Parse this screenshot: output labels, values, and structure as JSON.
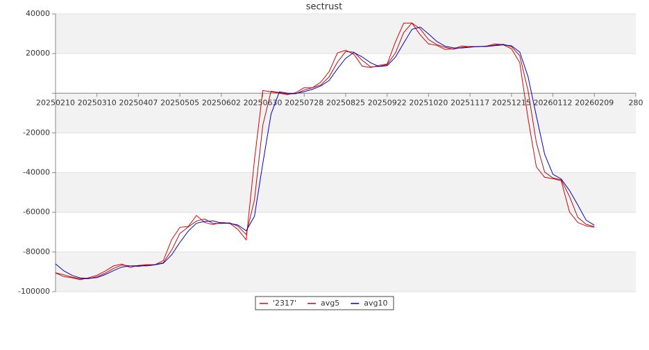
{
  "chart_data": {
    "type": "line",
    "title": "sectrust",
    "x": [
      0,
      4,
      8,
      12,
      16,
      20,
      24,
      28,
      32,
      36,
      40,
      44,
      48,
      52,
      56,
      60,
      64,
      68,
      72,
      76,
      80,
      84,
      88,
      92,
      96,
      100,
      104,
      108,
      112,
      116,
      120,
      124,
      128,
      132,
      136,
      140,
      144,
      148,
      152,
      156,
      160,
      164,
      168,
      172,
      176,
      180,
      184,
      188,
      192,
      196,
      200,
      204,
      208,
      212,
      216,
      220,
      224,
      228,
      232,
      236,
      240,
      244,
      248,
      252,
      256,
      260
    ],
    "series": [
      {
        "name": "'2317'",
        "color": "#dd0000",
        "values": [
          -90600,
          -92400,
          -93000,
          -94000,
          -93000,
          -91700,
          -89600,
          -87000,
          -86100,
          -87800,
          -86800,
          -86400,
          -86400,
          -84350,
          -73850,
          -67550,
          -67200,
          -61600,
          -65100,
          -66150,
          -65100,
          -65450,
          -68600,
          -73850,
          -33600,
          1400,
          700,
          0,
          -700,
          350,
          2800,
          2800,
          5600,
          10850,
          20300,
          21700,
          19600,
          13650,
          12950,
          14000,
          14700,
          25900,
          35350,
          35350,
          29400,
          24850,
          24150,
          22050,
          22400,
          23800,
          23450,
          23450,
          23800,
          24850,
          24500,
          22400,
          15400,
          -12600,
          -37100,
          -42350,
          -43050,
          -44100,
          -59850,
          -65100,
          -66850,
          -67550
        ]
      },
      {
        "name": "avg5",
        "color": "#aa1111",
        "values": [
          -90500,
          -91500,
          -92700,
          -93500,
          -93500,
          -92400,
          -90700,
          -88300,
          -86600,
          -87000,
          -87300,
          -86600,
          -86400,
          -85400,
          -79100,
          -70700,
          -67400,
          -64400,
          -63400,
          -65600,
          -65600,
          -65300,
          -67000,
          -71200,
          -53700,
          -16100,
          1000,
          400,
          -400,
          -200,
          1600,
          2800,
          4200,
          8200,
          15600,
          21000,
          20700,
          16600,
          13300,
          13500,
          14400,
          20300,
          30600,
          35400,
          32400,
          27100,
          24500,
          23100,
          22200,
          23100,
          23600,
          23500,
          23600,
          24300,
          24700,
          23500,
          18900,
          1400,
          -24900,
          -39700,
          -42700,
          -43600,
          -52000,
          -62500,
          -66000,
          -67200
        ]
      },
      {
        "name": "avg10",
        "color": "#0000cc",
        "values": [
          -86000,
          -89500,
          -91800,
          -93100,
          -93300,
          -92900,
          -91400,
          -89400,
          -87600,
          -87000,
          -86900,
          -87000,
          -86500,
          -85700,
          -81500,
          -75200,
          -69500,
          -65500,
          -64600,
          -64300,
          -65500,
          -65600,
          -66400,
          -69300,
          -62000,
          -35400,
          -10500,
          700,
          0,
          -100,
          800,
          2000,
          3700,
          6400,
          12300,
          17600,
          20500,
          18300,
          15400,
          13500,
          13900,
          18200,
          25300,
          32200,
          33400,
          29900,
          26100,
          23700,
          22900,
          22800,
          23200,
          23600,
          23600,
          24000,
          24400,
          23900,
          20800,
          8400,
          -11400,
          -30700,
          -40800,
          -43200,
          -49000,
          -56300,
          -63900,
          -66500
        ]
      }
    ],
    "xlim": [
      0,
      280
    ],
    "xticks": [
      {
        "value": 0,
        "label": "20250210"
      },
      {
        "value": 20,
        "label": "20250310"
      },
      {
        "value": 40,
        "label": "20250407"
      },
      {
        "value": 60,
        "label": "20250505"
      },
      {
        "value": 80,
        "label": "20250602"
      },
      {
        "value": 100,
        "label": "20250630"
      },
      {
        "value": 120,
        "label": "20250728"
      },
      {
        "value": 140,
        "label": "20250825"
      },
      {
        "value": 160,
        "label": "20250922"
      },
      {
        "value": 180,
        "label": "20251020"
      },
      {
        "value": 200,
        "label": "20251117"
      },
      {
        "value": 220,
        "label": "20251215"
      },
      {
        "value": 240,
        "label": "20260112"
      },
      {
        "value": 260,
        "label": "20260209"
      },
      280
    ],
    "ylim": [
      -100000,
      40000
    ],
    "yticks": [
      40000,
      20000,
      {
        "value": 0,
        "label": null
      },
      -20000,
      -40000,
      -60000,
      -80000,
      -100000
    ],
    "grid": true,
    "legend": "bottom"
  }
}
